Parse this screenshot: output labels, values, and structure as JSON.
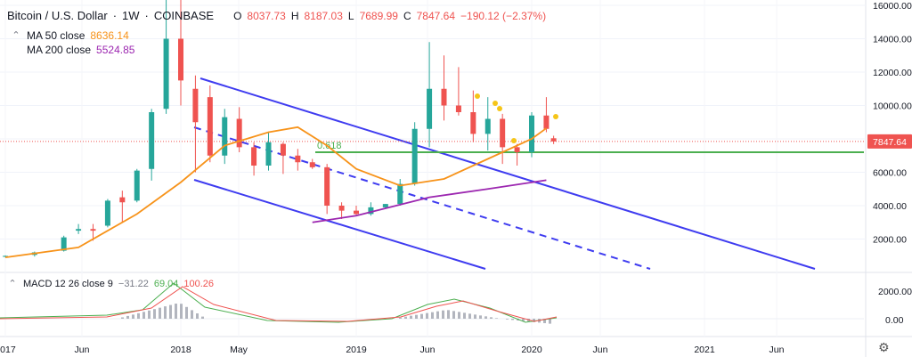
{
  "header": {
    "symbol": "Bitcoin / U.S. Dollar",
    "interval": "1W",
    "exchange": "COINBASE",
    "o_label": "O",
    "o": "8037.73",
    "h_label": "H",
    "h": "8187.03",
    "l_label": "L",
    "l": "7689.99",
    "c_label": "C",
    "c": "7847.64",
    "change": "−190.12 (−2.37%)"
  },
  "indicators": {
    "ma50": {
      "label": "MA 50 close",
      "value": "8636.14",
      "color": "#f7931a"
    },
    "ma200": {
      "label": "MA 200 close",
      "value": "5524.85",
      "color": "#9c27b0"
    },
    "macd": {
      "label": "MACD 12 26 close 9",
      "v1": "−31.22",
      "v2": "69.04",
      "v3": "100.26",
      "v1_color": "#787b86",
      "v2_color": "#4caf50",
      "v3_color": "#ef5350"
    }
  },
  "price_label": "7847.64",
  "fib_label": "0.618",
  "chart_data": {
    "type": "candlestick",
    "title": "Bitcoin / U.S. Dollar",
    "price_axis": {
      "range": [
        0,
        16000
      ],
      "ticks": [
        "2000.00",
        "4000.00",
        "6000.00",
        "8000.00",
        "10000.00",
        "12000.00",
        "14000.00",
        "16000.00"
      ]
    },
    "macd_axis": {
      "ticks": [
        "2000.00",
        "0.00"
      ]
    },
    "time_axis": {
      "ticks": [
        "2017",
        "Jun",
        "2018",
        "May",
        "2019",
        "Jun",
        "2020",
        "Jun",
        "2021",
        "Jun"
      ]
    },
    "last_price": 7847.64,
    "fib_0618_level": 7200,
    "ma50": [
      {
        "t": "2017-01",
        "v": 900
      },
      {
        "t": "2017-06",
        "v": 1500
      },
      {
        "t": "2017-10",
        "v": 3500
      },
      {
        "t": "2018-01",
        "v": 5400
      },
      {
        "t": "2018-04",
        "v": 7600
      },
      {
        "t": "2018-07",
        "v": 8400
      },
      {
        "t": "2018-09",
        "v": 8700
      },
      {
        "t": "2018-11",
        "v": 7600
      },
      {
        "t": "2019-01",
        "v": 6200
      },
      {
        "t": "2019-04",
        "v": 5200
      },
      {
        "t": "2019-07",
        "v": 5600
      },
      {
        "t": "2019-10",
        "v": 6800
      },
      {
        "t": "2020-01",
        "v": 8000
      },
      {
        "t": "2020-02",
        "v": 8636
      }
    ],
    "ma200": [
      {
        "t": "2018-10",
        "v": 3000
      },
      {
        "t": "2019-01",
        "v": 3400
      },
      {
        "t": "2019-06",
        "v": 4500
      },
      {
        "t": "2019-10",
        "v": 5000
      },
      {
        "t": "2020-02",
        "v": 5525
      }
    ],
    "candles": [
      {
        "t": "2017-01",
        "o": 960,
        "h": 1020,
        "l": 900,
        "c": 990
      },
      {
        "t": "2017-03",
        "o": 1050,
        "h": 1250,
        "l": 950,
        "c": 1200
      },
      {
        "t": "2017-05",
        "o": 1300,
        "h": 2200,
        "l": 1250,
        "c": 2100
      },
      {
        "t": "2017-06",
        "o": 2500,
        "h": 2900,
        "l": 2300,
        "c": 2600
      },
      {
        "t": "2017-07",
        "o": 2600,
        "h": 2900,
        "l": 1900,
        "c": 2500
      },
      {
        "t": "2017-08",
        "o": 2800,
        "h": 4400,
        "l": 2700,
        "c": 4300
      },
      {
        "t": "2017-09",
        "o": 4500,
        "h": 4900,
        "l": 3000,
        "c": 4200
      },
      {
        "t": "2017-10",
        "o": 4300,
        "h": 6200,
        "l": 4200,
        "c": 6100
      },
      {
        "t": "2017-11",
        "o": 6200,
        "h": 9800,
        "l": 5500,
        "c": 9600
      },
      {
        "t": "2017-12",
        "o": 9800,
        "h": 16500,
        "l": 9500,
        "c": 14000
      },
      {
        "t": "2018-01",
        "o": 14000,
        "h": 17000,
        "l": 10000,
        "c": 11500
      },
      {
        "t": "2018-02",
        "o": 11000,
        "h": 11800,
        "l": 6000,
        "c": 9000
      },
      {
        "t": "2018-03",
        "o": 10500,
        "h": 11200,
        "l": 6600,
        "c": 7000
      },
      {
        "t": "2018-04",
        "o": 7000,
        "h": 9800,
        "l": 6500,
        "c": 9300
      },
      {
        "t": "2018-05",
        "o": 9200,
        "h": 9900,
        "l": 7200,
        "c": 7500
      },
      {
        "t": "2018-06",
        "o": 7500,
        "h": 7800,
        "l": 5800,
        "c": 6400
      },
      {
        "t": "2018-07",
        "o": 6400,
        "h": 8400,
        "l": 6100,
        "c": 7800
      },
      {
        "t": "2018-08",
        "o": 7700,
        "h": 7800,
        "l": 5900,
        "c": 7000
      },
      {
        "t": "2018-09",
        "o": 7000,
        "h": 7400,
        "l": 6100,
        "c": 6600
      },
      {
        "t": "2018-10",
        "o": 6600,
        "h": 6800,
        "l": 6200,
        "c": 6300
      },
      {
        "t": "2018-11",
        "o": 6300,
        "h": 6500,
        "l": 3500,
        "c": 4000
      },
      {
        "t": "2018-12",
        "o": 4000,
        "h": 4200,
        "l": 3200,
        "c": 3700
      },
      {
        "t": "2019-01",
        "o": 3700,
        "h": 4000,
        "l": 3400,
        "c": 3500
      },
      {
        "t": "2019-02",
        "o": 3500,
        "h": 4200,
        "l": 3400,
        "c": 3900
      },
      {
        "t": "2019-03",
        "o": 3900,
        "h": 4100,
        "l": 3800,
        "c": 4100
      },
      {
        "t": "2019-04",
        "o": 4100,
        "h": 5600,
        "l": 4000,
        "c": 5300
      },
      {
        "t": "2019-05",
        "o": 5300,
        "h": 9000,
        "l": 5200,
        "c": 8600
      },
      {
        "t": "2019-06",
        "o": 8600,
        "h": 13800,
        "l": 7500,
        "c": 11000
      },
      {
        "t": "2019-07",
        "o": 11000,
        "h": 13000,
        "l": 9100,
        "c": 10000
      },
      {
        "t": "2019-08",
        "o": 10000,
        "h": 12300,
        "l": 9400,
        "c": 9600
      },
      {
        "t": "2019-09",
        "o": 9600,
        "h": 10900,
        "l": 7800,
        "c": 8300
      },
      {
        "t": "2019-10",
        "o": 8300,
        "h": 10500,
        "l": 7300,
        "c": 9200
      },
      {
        "t": "2019-11",
        "o": 9200,
        "h": 9500,
        "l": 6500,
        "c": 7500
      },
      {
        "t": "2019-12",
        "o": 7500,
        "h": 7700,
        "l": 6400,
        "c": 7200
      },
      {
        "t": "2020-01",
        "o": 7200,
        "h": 9600,
        "l": 6900,
        "c": 9400
      },
      {
        "t": "2020-02",
        "o": 9400,
        "h": 10500,
        "l": 8400,
        "c": 8600
      },
      {
        "t": "2020-02b",
        "o": 8037.73,
        "h": 8187.03,
        "l": 7689.99,
        "c": 7847.64
      }
    ]
  }
}
